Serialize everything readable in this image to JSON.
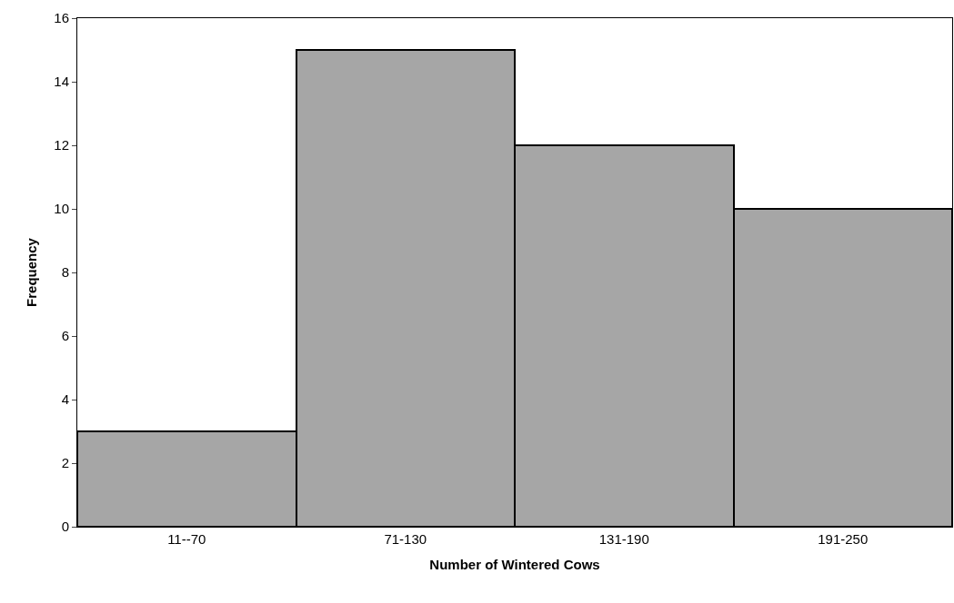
{
  "chart_data": {
    "type": "bar",
    "xlabel": "Number of Wintered Cows",
    "ylabel": "Frequency",
    "categories": [
      "11--70",
      "71-130",
      "131-190",
      "191-250"
    ],
    "values": [
      3,
      15,
      12,
      10
    ],
    "color": "#a6a6a6",
    "ylim": [
      0,
      16
    ],
    "yticks": [
      0,
      2,
      4,
      6,
      8,
      10,
      12,
      14,
      16
    ],
    "legend": false
  }
}
